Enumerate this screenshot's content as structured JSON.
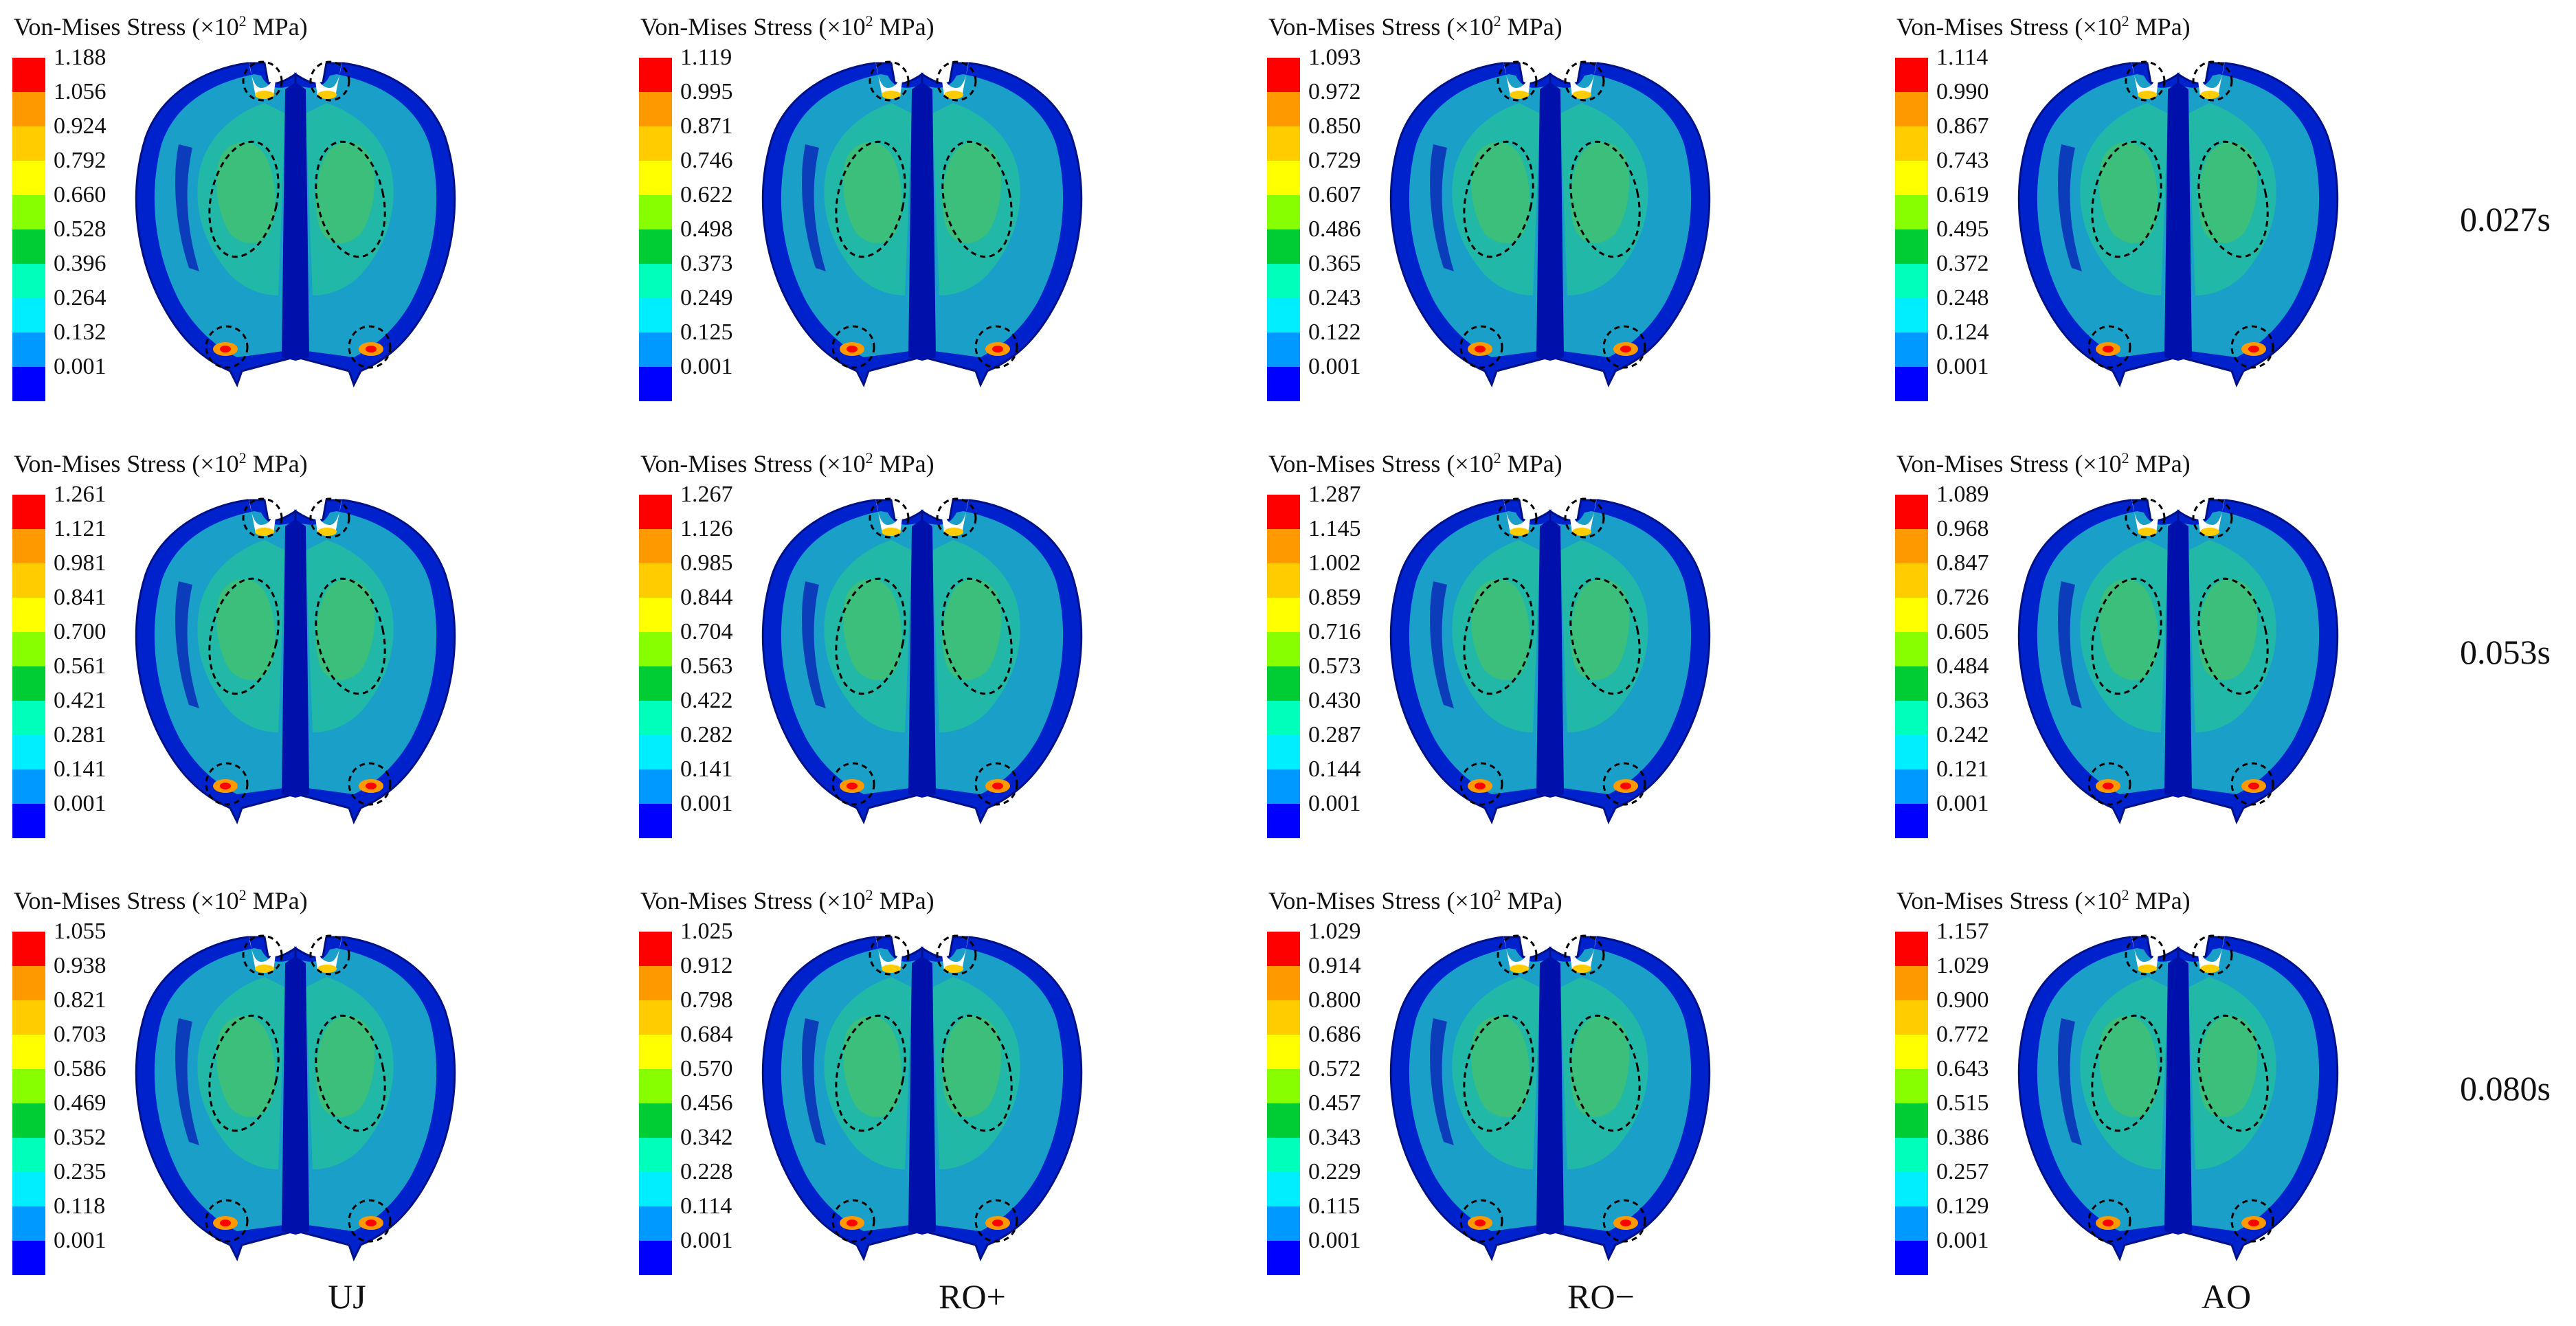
{
  "colors": [
    "#ff0000",
    "#ff9900",
    "#ffcc00",
    "#ffff00",
    "#88ff00",
    "#00cc33",
    "#00ffbb",
    "#00eeff",
    "#0099ff",
    "#0000ff"
  ],
  "legend": {
    "title_prefix": "Von-Mises Stress (×10",
    "exponent": "2",
    "title_suffix": " MPa)"
  },
  "time_labels": [
    "0.027s",
    "0.053s",
    "0.080s"
  ],
  "column_labels": [
    "UJ",
    "RO+",
    "RO−",
    "AO"
  ],
  "panels": [
    [
      {
        "values": [
          "1.188",
          "1.056",
          "0.924",
          "0.792",
          "0.660",
          "0.528",
          "0.396",
          "0.264",
          "0.132",
          "0.001"
        ]
      },
      {
        "values": [
          "1.119",
          "0.995",
          "0.871",
          "0.746",
          "0.622",
          "0.498",
          "0.373",
          "0.249",
          "0.125",
          "0.001"
        ]
      },
      {
        "values": [
          "1.093",
          "0.972",
          "0.850",
          "0.729",
          "0.607",
          "0.486",
          "0.365",
          "0.243",
          "0.122",
          "0.001"
        ]
      },
      {
        "values": [
          "1.114",
          "0.990",
          "0.867",
          "0.743",
          "0.619",
          "0.495",
          "0.372",
          "0.248",
          "0.124",
          "0.001"
        ]
      }
    ],
    [
      {
        "values": [
          "1.261",
          "1.121",
          "0.981",
          "0.841",
          "0.700",
          "0.561",
          "0.421",
          "0.281",
          "0.141",
          "0.001"
        ]
      },
      {
        "values": [
          "1.267",
          "1.126",
          "0.985",
          "0.844",
          "0.704",
          "0.563",
          "0.422",
          "0.282",
          "0.141",
          "0.001"
        ]
      },
      {
        "values": [
          "1.287",
          "1.145",
          "1.002",
          "0.859",
          "0.716",
          "0.573",
          "0.430",
          "0.287",
          "0.144",
          "0.001"
        ]
      },
      {
        "values": [
          "1.089",
          "0.968",
          "0.847",
          "0.726",
          "0.605",
          "0.484",
          "0.363",
          "0.242",
          "0.121",
          "0.001"
        ]
      }
    ],
    [
      {
        "values": [
          "1.055",
          "0.938",
          "0.821",
          "0.703",
          "0.586",
          "0.469",
          "0.352",
          "0.235",
          "0.118",
          "0.001"
        ]
      },
      {
        "values": [
          "1.025",
          "0.912",
          "0.798",
          "0.684",
          "0.570",
          "0.456",
          "0.342",
          "0.228",
          "0.114",
          "0.001"
        ]
      },
      {
        "values": [
          "1.029",
          "0.914",
          "0.800",
          "0.686",
          "0.572",
          "0.457",
          "0.343",
          "0.229",
          "0.115",
          "0.001"
        ]
      },
      {
        "values": [
          "1.157",
          "1.029",
          "0.900",
          "0.772",
          "0.643",
          "0.515",
          "0.386",
          "0.257",
          "0.129",
          "0.001"
        ]
      }
    ]
  ]
}
